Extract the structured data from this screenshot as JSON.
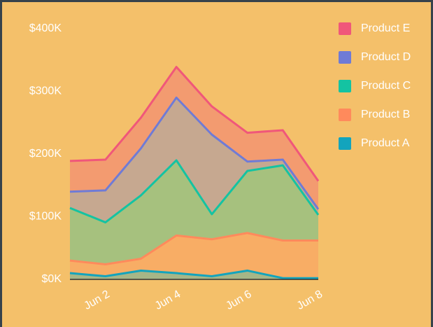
{
  "chart_data": {
    "type": "stacked_area",
    "categories": [
      null,
      "Jun 2",
      null,
      "Jun 4",
      null,
      "Jun 6",
      null,
      "Jun 8"
    ],
    "series": [
      {
        "name": "Product A",
        "color": "#13a4bd",
        "values": [
          10000,
          5000,
          14000,
          10000,
          5000,
          14000,
          2000,
          2000
        ]
      },
      {
        "name": "Product B",
        "color": "#ff8a5c",
        "values": [
          20000,
          19000,
          19000,
          60000,
          59000,
          60000,
          60000,
          60000
        ]
      },
      {
        "name": "Product C",
        "color": "#14c3a2",
        "values": [
          84000,
          67000,
          101000,
          120000,
          40000,
          99000,
          120000,
          41000
        ]
      },
      {
        "name": "Product D",
        "color": "#6f7bd6",
        "values": [
          26000,
          51000,
          75000,
          100000,
          127000,
          15000,
          9000,
          9000
        ]
      },
      {
        "name": "Product E",
        "color": "#f0577a",
        "values": [
          49000,
          49000,
          49000,
          49000,
          45000,
          46000,
          47000,
          45000
        ]
      }
    ],
    "ylim": [
      0,
      400000
    ],
    "yticks": [
      {
        "value": 0,
        "label": "$0K"
      },
      {
        "value": 100000,
        "label": "$100K"
      },
      {
        "value": 200000,
        "label": "$200K"
      },
      {
        "value": 300000,
        "label": "$300K"
      },
      {
        "value": 400000,
        "label": "$400K"
      }
    ],
    "legend": "top-right"
  }
}
